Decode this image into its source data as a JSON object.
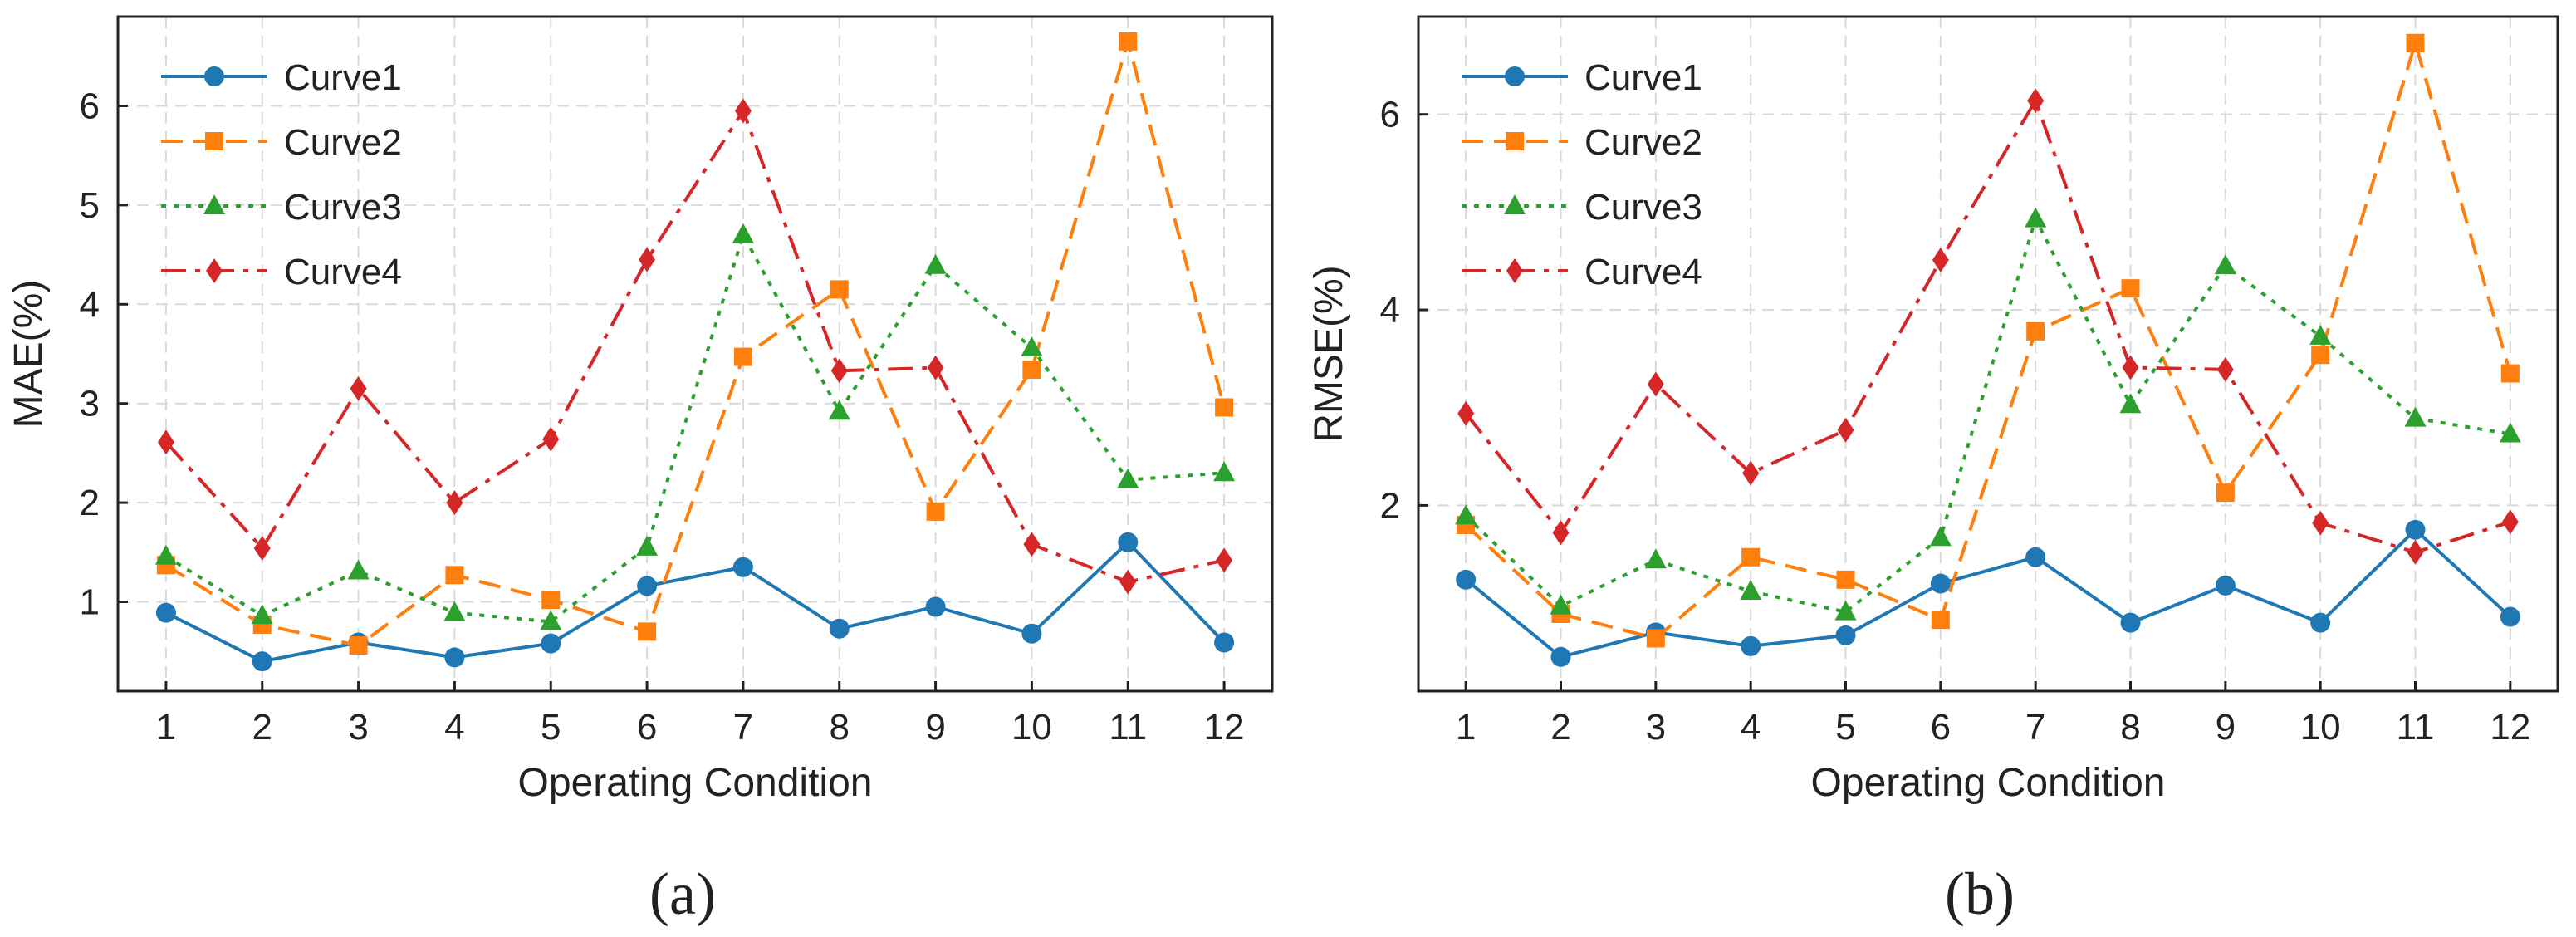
{
  "colors": {
    "Curve1": "#1f77b4",
    "Curve2": "#ff7f0e",
    "Curve3": "#2ca02c",
    "Curve4": "#d62728"
  },
  "chart_data": [
    {
      "type": "line",
      "panel_label": "(a)",
      "xlabel": "Operating Condition",
      "ylabel": "MAE(%)",
      "categories": [
        "1",
        "2",
        "3",
        "4",
        "5",
        "6",
        "7",
        "8",
        "9",
        "10",
        "11",
        "12"
      ],
      "x": [
        1,
        2,
        3,
        4,
        5,
        6,
        7,
        8,
        9,
        10,
        11,
        12
      ],
      "xlim": [
        0.5,
        12.5
      ],
      "ylim": [
        0.1,
        6.9
      ],
      "yticks": [
        1,
        2,
        3,
        4,
        5,
        6
      ],
      "ytick_labels": [
        "1",
        "2",
        "3",
        "4",
        "5",
        "6"
      ],
      "grid": true,
      "legend_position": "top-left",
      "series": [
        {
          "name": "Curve1",
          "marker": "circle",
          "line_style": "solid",
          "values": [
            0.89,
            0.4,
            0.59,
            0.44,
            0.58,
            1.16,
            1.35,
            0.73,
            0.95,
            0.68,
            1.6,
            0.59
          ]
        },
        {
          "name": "Curve2",
          "marker": "square",
          "line_style": "dashed",
          "values": [
            1.37,
            0.77,
            0.56,
            1.27,
            1.02,
            0.7,
            3.47,
            4.15,
            1.91,
            3.34,
            6.65,
            2.96
          ]
        },
        {
          "name": "Curve3",
          "marker": "triangle",
          "line_style": "dotted",
          "values": [
            1.46,
            0.86,
            1.31,
            0.89,
            0.8,
            1.55,
            4.7,
            2.92,
            4.39,
            3.56,
            2.23,
            2.3
          ]
        },
        {
          "name": "Curve4",
          "marker": "diamond",
          "line_style": "dashdot",
          "values": [
            2.61,
            1.54,
            3.15,
            2.0,
            2.64,
            4.45,
            5.95,
            3.33,
            3.36,
            1.58,
            1.2,
            1.42
          ]
        }
      ]
    },
    {
      "type": "line",
      "panel_label": "(b)",
      "xlabel": "Operating Condition",
      "ylabel": "RMSE(%)",
      "categories": [
        "1",
        "2",
        "3",
        "4",
        "5",
        "6",
        "7",
        "8",
        "9",
        "10",
        "11",
        "12"
      ],
      "x": [
        1,
        2,
        3,
        4,
        5,
        6,
        7,
        8,
        9,
        10,
        11,
        12
      ],
      "xlim": [
        0.5,
        12.5
      ],
      "ylim": [
        0.1,
        7.0
      ],
      "yticks": [
        2,
        4,
        6
      ],
      "ytick_labels": [
        "2",
        "4",
        "6"
      ],
      "grid": true,
      "legend_position": "top-left",
      "series": [
        {
          "name": "Curve1",
          "marker": "circle",
          "line_style": "solid",
          "values": [
            1.24,
            0.45,
            0.7,
            0.56,
            0.67,
            1.2,
            1.47,
            0.8,
            1.18,
            0.8,
            1.75,
            0.86
          ]
        },
        {
          "name": "Curve2",
          "marker": "square",
          "line_style": "dashed",
          "values": [
            1.8,
            0.89,
            0.64,
            1.47,
            1.24,
            0.83,
            3.78,
            4.22,
            2.13,
            3.54,
            6.73,
            3.35
          ]
        },
        {
          "name": "Curve3",
          "marker": "triangle",
          "line_style": "dotted",
          "values": [
            1.89,
            0.97,
            1.44,
            1.12,
            0.91,
            1.67,
            4.93,
            3.03,
            4.45,
            3.73,
            2.89,
            2.73
          ]
        },
        {
          "name": "Curve4",
          "marker": "diamond",
          "line_style": "dashdot",
          "values": [
            2.94,
            1.72,
            3.24,
            2.33,
            2.77,
            4.51,
            6.14,
            3.41,
            3.39,
            1.82,
            1.52,
            1.83
          ]
        }
      ]
    }
  ]
}
